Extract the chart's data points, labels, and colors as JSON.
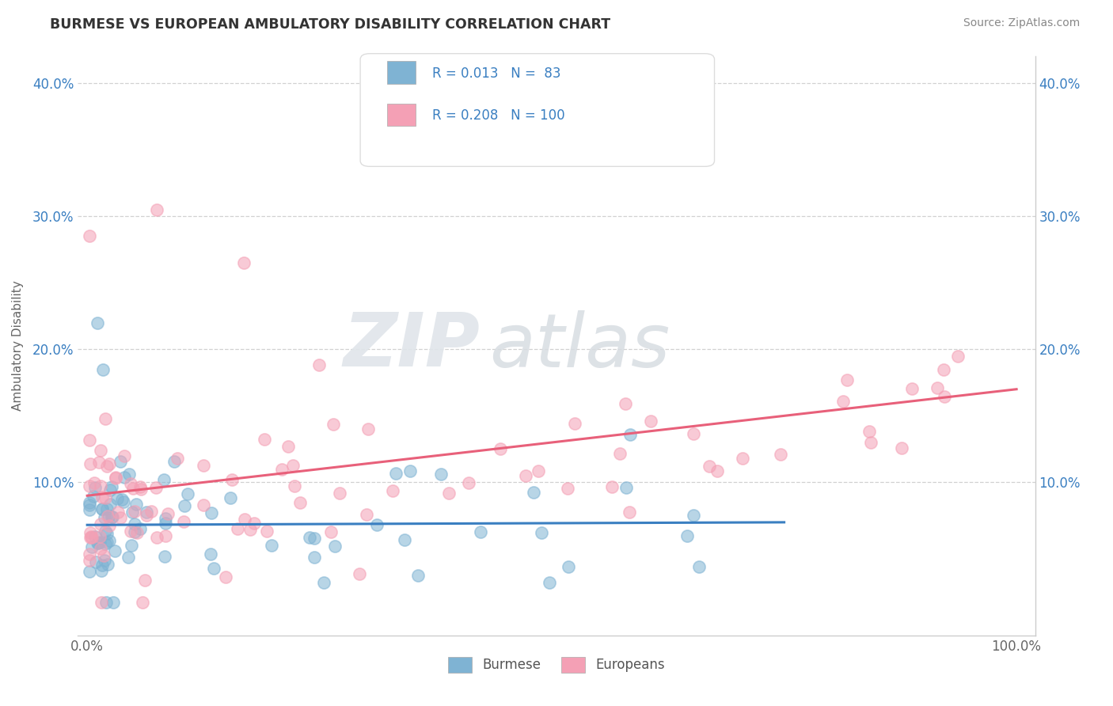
{
  "title": "BURMESE VS EUROPEAN AMBULATORY DISABILITY CORRELATION CHART",
  "source": "Source: ZipAtlas.com",
  "ylabel": "Ambulatory Disability",
  "burmese_color": "#7FB3D3",
  "european_color": "#F4A0B5",
  "burmese_line_color": "#3A7FC1",
  "european_line_color": "#E8607A",
  "burmese_R": 0.013,
  "burmese_N": 83,
  "european_R": 0.208,
  "european_N": 100,
  "legend_label_burmese": "Burmese",
  "legend_label_european": "Europeans",
  "watermark_zip": "ZIP",
  "watermark_atlas": "atlas",
  "background_color": "#FFFFFF",
  "legend_text_color": "#3A7FC1",
  "title_color": "#333333",
  "source_color": "#888888",
  "ylabel_color": "#666666",
  "tick_color": "#666666",
  "grid_color": "#CCCCCC",
  "spine_color": "#CCCCCC"
}
